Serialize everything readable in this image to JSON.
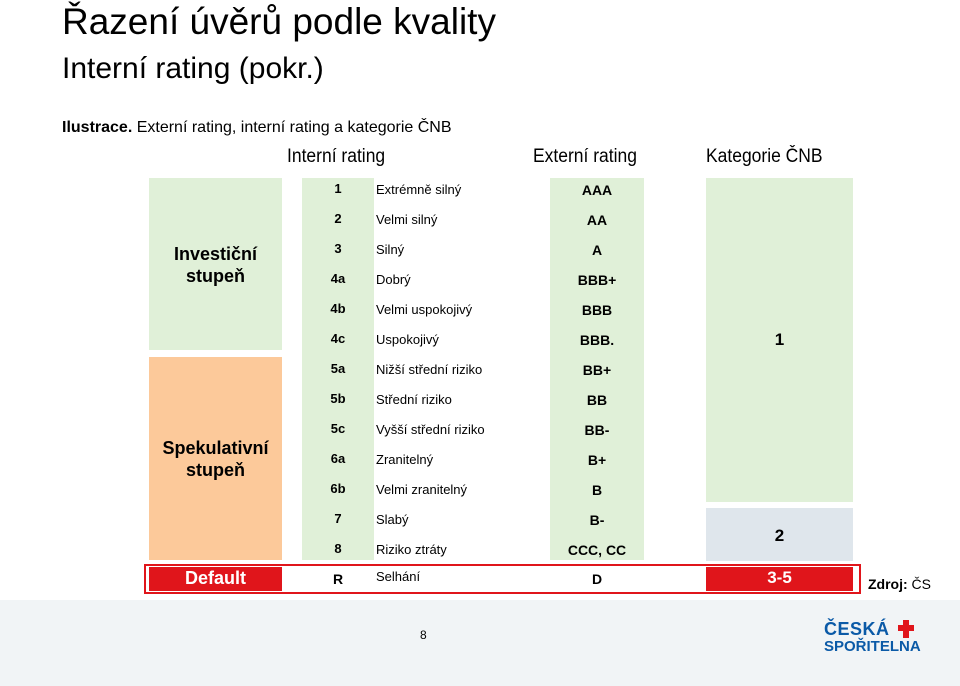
{
  "title": {
    "line1": "Řazení úvěrů podle kvality",
    "line2": "Interní rating (pokr.)"
  },
  "intro": {
    "label": "Ilustrace.",
    "text": " Externí rating, interní rating  a kategorie ČNB"
  },
  "headers": {
    "internal": "Interní rating",
    "external": "Externí rating",
    "cnb": "Kategorie ČNB"
  },
  "groups": {
    "investment": "Investiční stupeň",
    "speculative": "Spekulativní stupeň"
  },
  "rows": [
    {
      "num": "1",
      "desc": "Extrémně silný",
      "ext": "AAA"
    },
    {
      "num": "2",
      "desc": "Velmi silný",
      "ext": "AA"
    },
    {
      "num": "3",
      "desc": "Silný",
      "ext": "A"
    },
    {
      "num": "4a",
      "desc": "Dobrý",
      "ext": "BBB+"
    },
    {
      "num": "4b",
      "desc": "Velmi uspokojivý",
      "ext": "BBB"
    },
    {
      "num": "4c",
      "desc": "Uspokojivý",
      "ext": "BBB."
    },
    {
      "num": "5a",
      "desc": "Nižší střední riziko",
      "ext": "BB+"
    },
    {
      "num": "5b",
      "desc": "Střední riziko",
      "ext": "BB"
    },
    {
      "num": "5c",
      "desc": "Vyšší střední riziko",
      "ext": "BB-"
    },
    {
      "num": "6a",
      "desc": "Zranitelný",
      "ext": "B+"
    },
    {
      "num": "6b",
      "desc": "Velmi zranitelný",
      "ext": "B"
    },
    {
      "num": "7",
      "desc": "Slabý",
      "ext": "B-"
    },
    {
      "num": "8",
      "desc": "Riziko ztráty",
      "ext": "CCC, CC"
    }
  ],
  "cnb": {
    "cat1": "1",
    "cat2": "2"
  },
  "default_row": {
    "label": "Default",
    "num": "R",
    "desc": "Selhání",
    "ext": "D",
    "cnb": "3-5"
  },
  "source": {
    "label": "Zdroj:",
    "value": " ČS"
  },
  "footer": {
    "page": "8",
    "logo_line1": "ČESKÁ",
    "logo_line2": "SPOŘITELNA"
  },
  "colors": {
    "green": "#e0f0d8",
    "orange": "#fcc99a",
    "red": "#e0151b",
    "grey_blue": "#dfe6ec",
    "logo_blue": "#0b5aa7"
  }
}
